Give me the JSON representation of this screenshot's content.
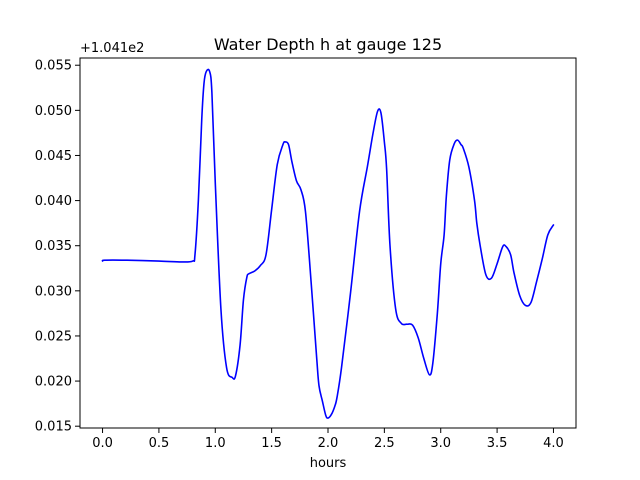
{
  "chart_data": {
    "type": "line",
    "title": "Water Depth h at gauge 125",
    "xlabel": "hours",
    "ylabel": "",
    "offset_label": "+1.041e2",
    "xlim": [
      -0.2,
      4.2
    ],
    "ylim": [
      0.0148,
      0.0558
    ],
    "x_ticks": [
      0.0,
      0.5,
      1.0,
      1.5,
      2.0,
      2.5,
      3.0,
      3.5,
      4.0
    ],
    "x_tick_labels": [
      "0.0",
      "0.5",
      "1.0",
      "1.5",
      "2.0",
      "2.5",
      "3.0",
      "3.5",
      "4.0"
    ],
    "y_ticks": [
      0.015,
      0.02,
      0.025,
      0.03,
      0.035,
      0.04,
      0.045,
      0.05,
      0.055
    ],
    "y_tick_labels": [
      "0.015",
      "0.020",
      "0.025",
      "0.030",
      "0.035",
      "0.040",
      "0.045",
      "0.050",
      "0.055"
    ],
    "grid": false,
    "series": [
      {
        "color": "#0000ff",
        "x": [
          0.0,
          0.02,
          0.2,
          0.5,
          0.7,
          0.8,
          0.82,
          0.85,
          0.88,
          0.9,
          0.92,
          0.95,
          0.97,
          1.0,
          1.05,
          1.1,
          1.15,
          1.18,
          1.22,
          1.25,
          1.28,
          1.3,
          1.35,
          1.4,
          1.45,
          1.5,
          1.55,
          1.6,
          1.62,
          1.65,
          1.68,
          1.72,
          1.76,
          1.8,
          1.85,
          1.9,
          1.92,
          1.95,
          1.98,
          2.0,
          2.03,
          2.06,
          2.08,
          2.12,
          2.2,
          2.28,
          2.35,
          2.4,
          2.44,
          2.47,
          2.5,
          2.52,
          2.55,
          2.6,
          2.65,
          2.7,
          2.75,
          2.8,
          2.85,
          2.9,
          2.93,
          2.97,
          3.0,
          3.03,
          3.05,
          3.08,
          3.12,
          3.15,
          3.18,
          3.2,
          3.25,
          3.3,
          3.32,
          3.35,
          3.4,
          3.45,
          3.5,
          3.55,
          3.58,
          3.62,
          3.65,
          3.7,
          3.75,
          3.8,
          3.85,
          3.9,
          3.95,
          4.0
        ],
        "y": [
          0.0333,
          0.0334,
          0.0334,
          0.0333,
          0.0332,
          0.0333,
          0.034,
          0.04,
          0.049,
          0.053,
          0.0543,
          0.0543,
          0.052,
          0.042,
          0.028,
          0.0215,
          0.0204,
          0.0206,
          0.024,
          0.029,
          0.0315,
          0.0319,
          0.0322,
          0.0328,
          0.034,
          0.039,
          0.044,
          0.0462,
          0.0465,
          0.0462,
          0.0443,
          0.0422,
          0.0412,
          0.0388,
          0.031,
          0.0225,
          0.0195,
          0.0178,
          0.0162,
          0.0159,
          0.0163,
          0.0172,
          0.0182,
          0.0215,
          0.0298,
          0.0388,
          0.0438,
          0.0475,
          0.0499,
          0.0497,
          0.0465,
          0.0435,
          0.035,
          0.028,
          0.0264,
          0.0263,
          0.0262,
          0.0248,
          0.0225,
          0.0207,
          0.022,
          0.0275,
          0.033,
          0.0362,
          0.0405,
          0.0445,
          0.0463,
          0.0467,
          0.0462,
          0.0458,
          0.0437,
          0.04,
          0.0375,
          0.035,
          0.0318,
          0.0314,
          0.033,
          0.0349,
          0.0349,
          0.034,
          0.032,
          0.0295,
          0.0284,
          0.0287,
          0.031,
          0.0335,
          0.0362,
          0.0373
        ]
      }
    ]
  }
}
